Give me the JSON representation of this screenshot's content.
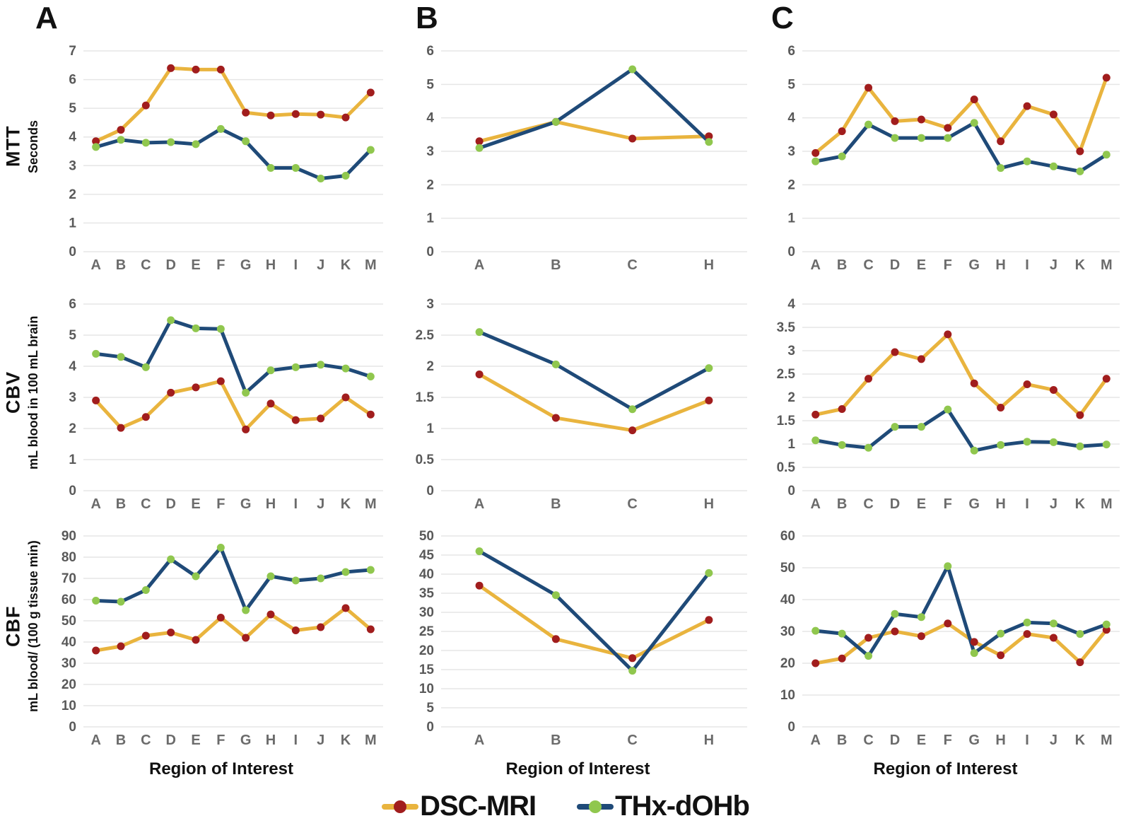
{
  "panels": [
    {
      "label": "A"
    },
    {
      "label": "B"
    },
    {
      "label": "C"
    }
  ],
  "rows": [
    {
      "label": "MTT",
      "ylabel": "Seconds"
    },
    {
      "label": "CBV",
      "ylabel": "mL blood in 100 mL brain"
    },
    {
      "label": "CBF",
      "ylabel": "mL blood/ (100 g tissue min)"
    }
  ],
  "xlabel": "Region of Interest",
  "legend": [
    {
      "label": "DSC-MRI",
      "line_color": "#E9B43E",
      "marker_color": "#A11D1D"
    },
    {
      "label": "THx-dOHb",
      "line_color": "#1F4A78",
      "marker_color": "#90C74E"
    }
  ],
  "colors": {
    "grid": "#E6E6E6",
    "tick_text": "#595959",
    "background": "#FFFFFF"
  },
  "chart_data": [
    {
      "id": "a_mtt",
      "panel": "A",
      "row": "MTT",
      "type": "line",
      "ylabel": "Seconds",
      "ylim": [
        0,
        7
      ],
      "ystep": 1,
      "grid": true,
      "categories": [
        "A",
        "B",
        "C",
        "D",
        "E",
        "F",
        "G",
        "H",
        "I",
        "J",
        "K",
        "M"
      ],
      "series": [
        {
          "name": "DSC-MRI",
          "values": [
            3.85,
            4.25,
            5.1,
            6.4,
            6.35,
            6.35,
            4.85,
            4.75,
            4.8,
            4.78,
            4.68,
            5.55
          ]
        },
        {
          "name": "THx-dOHb",
          "values": [
            3.65,
            3.9,
            3.8,
            3.82,
            3.75,
            4.28,
            3.85,
            2.92,
            2.92,
            2.55,
            2.65,
            3.55
          ]
        }
      ]
    },
    {
      "id": "b_mtt",
      "panel": "B",
      "row": "MTT",
      "type": "line",
      "ylabel": "",
      "ylim": [
        0,
        6
      ],
      "ystep": 1,
      "grid": true,
      "categories": [
        "A",
        "B",
        "C",
        "H"
      ],
      "series": [
        {
          "name": "DSC-MRI",
          "values": [
            3.3,
            3.88,
            3.38,
            3.45
          ]
        },
        {
          "name": "THx-dOHb",
          "values": [
            3.1,
            3.88,
            5.45,
            3.28
          ]
        }
      ]
    },
    {
      "id": "c_mtt",
      "panel": "C",
      "row": "MTT",
      "type": "line",
      "ylabel": "",
      "ylim": [
        0,
        6
      ],
      "ystep": 1,
      "grid": true,
      "categories": [
        "A",
        "B",
        "C",
        "D",
        "E",
        "F",
        "G",
        "H",
        "I",
        "J",
        "K",
        "M"
      ],
      "series": [
        {
          "name": "DSC-MRI",
          "values": [
            2.95,
            3.6,
            4.9,
            3.9,
            3.95,
            3.7,
            4.55,
            3.3,
            4.35,
            4.1,
            3.0,
            5.2
          ]
        },
        {
          "name": "THx-dOHb",
          "values": [
            2.7,
            2.85,
            3.8,
            3.4,
            3.4,
            3.4,
            3.85,
            2.5,
            2.7,
            2.55,
            2.4,
            2.9
          ]
        }
      ]
    },
    {
      "id": "a_cbv",
      "panel": "A",
      "row": "CBV",
      "type": "line",
      "ylabel": "mL blood in 100 mL brain",
      "ylim": [
        0,
        6
      ],
      "ystep": 1,
      "grid": true,
      "categories": [
        "A",
        "B",
        "C",
        "D",
        "E",
        "F",
        "G",
        "H",
        "I",
        "J",
        "K",
        "M"
      ],
      "series": [
        {
          "name": "DSC-MRI",
          "values": [
            2.9,
            2.02,
            2.37,
            3.15,
            3.32,
            3.52,
            1.97,
            2.8,
            2.27,
            2.32,
            3.0,
            2.45
          ]
        },
        {
          "name": "THx-dOHb",
          "values": [
            4.4,
            4.3,
            3.97,
            5.48,
            5.22,
            5.2,
            3.15,
            3.87,
            3.97,
            4.05,
            3.93,
            3.67
          ]
        }
      ]
    },
    {
      "id": "b_cbv",
      "panel": "B",
      "row": "CBV",
      "type": "line",
      "ylabel": "",
      "ylim": [
        0,
        3
      ],
      "ystep": 0.5,
      "grid": true,
      "categories": [
        "A",
        "B",
        "C",
        "H"
      ],
      "series": [
        {
          "name": "DSC-MRI",
          "values": [
            1.87,
            1.17,
            0.97,
            1.45
          ]
        },
        {
          "name": "THx-dOHb",
          "values": [
            2.55,
            2.03,
            1.31,
            1.97
          ]
        }
      ]
    },
    {
      "id": "c_cbv",
      "panel": "C",
      "row": "CBV",
      "type": "line",
      "ylabel": "",
      "ylim": [
        0,
        4
      ],
      "ystep": 0.5,
      "grid": true,
      "categories": [
        "A",
        "B",
        "C",
        "D",
        "E",
        "F",
        "G",
        "H",
        "I",
        "J",
        "K",
        "M"
      ],
      "series": [
        {
          "name": "DSC-MRI",
          "values": [
            1.63,
            1.75,
            2.4,
            2.97,
            2.82,
            3.35,
            2.3,
            1.78,
            2.28,
            2.16,
            1.62,
            2.4
          ]
        },
        {
          "name": "THx-dOHb",
          "values": [
            1.08,
            0.98,
            0.92,
            1.37,
            1.37,
            1.74,
            0.86,
            0.98,
            1.05,
            1.04,
            0.95,
            0.99
          ]
        }
      ]
    },
    {
      "id": "a_cbf",
      "panel": "A",
      "row": "CBF",
      "type": "line",
      "ylabel": "mL blood/ (100 g tissue min)",
      "ylim": [
        0,
        90
      ],
      "ystep": 10,
      "grid": true,
      "categories": [
        "A",
        "B",
        "C",
        "D",
        "E",
        "F",
        "G",
        "H",
        "I",
        "J",
        "K",
        "M"
      ],
      "series": [
        {
          "name": "DSC-MRI",
          "values": [
            36.0,
            38.0,
            43.0,
            44.5,
            41.0,
            51.5,
            42.0,
            53.0,
            45.5,
            47.0,
            56.0,
            46.0
          ]
        },
        {
          "name": "THx-dOHb",
          "values": [
            59.5,
            59.0,
            64.5,
            79.0,
            71.0,
            84.5,
            55.0,
            71.0,
            69.0,
            70.0,
            73.0,
            74.0
          ]
        }
      ]
    },
    {
      "id": "b_cbf",
      "panel": "B",
      "row": "CBF",
      "type": "line",
      "ylabel": "",
      "ylim": [
        0,
        50
      ],
      "ystep": 5,
      "grid": true,
      "categories": [
        "A",
        "B",
        "C",
        "H"
      ],
      "series": [
        {
          "name": "DSC-MRI",
          "values": [
            37.0,
            23.0,
            18.0,
            28.0
          ]
        },
        {
          "name": "THx-dOHb",
          "values": [
            46.0,
            34.5,
            14.7,
            40.3
          ]
        }
      ]
    },
    {
      "id": "c_cbf",
      "panel": "C",
      "row": "CBF",
      "type": "line",
      "ylabel": "",
      "ylim": [
        0,
        60
      ],
      "ystep": 10,
      "grid": true,
      "categories": [
        "A",
        "B",
        "C",
        "D",
        "E",
        "F",
        "G",
        "H",
        "I",
        "J",
        "K",
        "M"
      ],
      "series": [
        {
          "name": "DSC-MRI",
          "values": [
            20.0,
            21.5,
            28.0,
            30.0,
            28.5,
            32.5,
            26.7,
            22.5,
            29.2,
            28.0,
            20.3,
            30.5
          ]
        },
        {
          "name": "THx-dOHb",
          "values": [
            30.2,
            29.3,
            22.3,
            35.5,
            34.5,
            50.5,
            23.2,
            29.3,
            32.8,
            32.5,
            29.2,
            32.2
          ]
        }
      ]
    }
  ]
}
